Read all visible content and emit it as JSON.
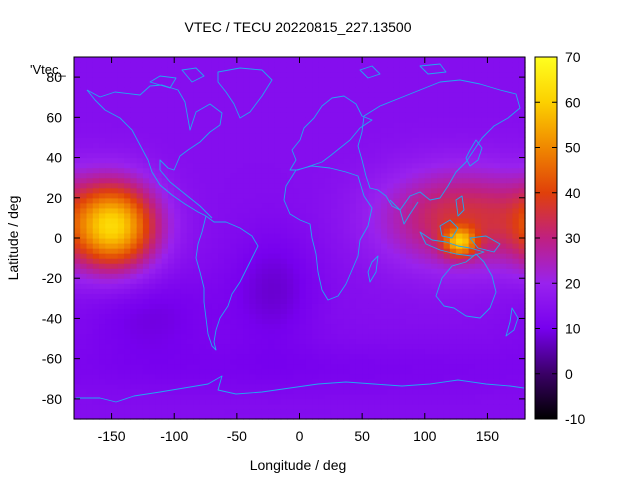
{
  "chart_data": {
    "type": "heatmap",
    "title": "VTEC / TECU 20220815_227.13500",
    "xlabel": "Longitude / deg",
    "ylabel": "Latitude / deg",
    "series_label": "'Vtec_",
    "xlim": [
      -180,
      180
    ],
    "ylim": [
      -90,
      90
    ],
    "xticks": [
      -150,
      -100,
      -50,
      0,
      50,
      100,
      150
    ],
    "yticks": [
      -80,
      -60,
      -40,
      -20,
      0,
      20,
      40,
      60,
      80
    ],
    "colorbar": {
      "range": [
        -10,
        70
      ],
      "ticks": [
        -10,
        0,
        10,
        20,
        30,
        40,
        50,
        60,
        70
      ],
      "palette": [
        "#000000",
        "#3a0066",
        "#7700ee",
        "#9922ee",
        "#c02080",
        "#e0400a",
        "#f08800",
        "#fcd000",
        "#ffff20"
      ]
    },
    "background_level": 14,
    "features": [
      {
        "name": "pacific-anomaly",
        "lon": -148,
        "lat": 6,
        "value": 58,
        "sigma_lon": 24,
        "sigma_lat": 15
      },
      {
        "name": "asia-anomaly",
        "lon": 130,
        "lat": 10,
        "value": 36,
        "sigma_lon": 45,
        "sigma_lat": 17
      },
      {
        "name": "indonesia-peak",
        "lon": 128,
        "lat": -2,
        "value": 44,
        "sigma_lon": 9,
        "sigma_lat": 5
      },
      {
        "name": "south-pacific-dip",
        "lon": -120,
        "lat": -38,
        "value": 9,
        "sigma_lon": 40,
        "sigma_lat": 15
      },
      {
        "name": "atlantic-dip",
        "lon": -20,
        "lat": -25,
        "value": 8,
        "sigma_lon": 25,
        "sigma_lat": 20
      },
      {
        "name": "antarctic-belt",
        "lon": 0,
        "lat": -65,
        "value": 11,
        "sigma_lon": 200,
        "sigma_lat": 10
      }
    ],
    "coastline_color": "#20a8f0"
  }
}
